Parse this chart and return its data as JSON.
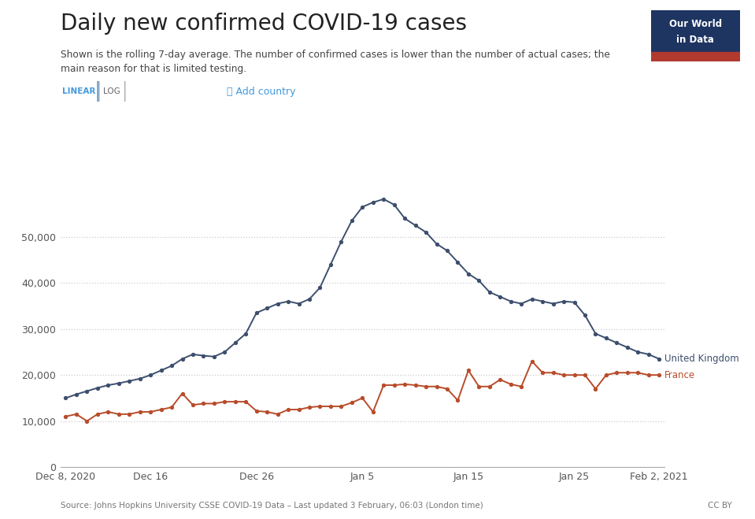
{
  "title": "Daily new confirmed COVID-19 cases",
  "subtitle": "Shown is the rolling 7-day average. The number of confirmed cases is lower than the number of actual cases; the\nmain reason for that is limited testing.",
  "source": "Source: Johns Hopkins University CSSE COVID-19 Data – Last updated 3 February, 06:03 (London time)",
  "cc_by": "CC BY",
  "uk_color": "#3d4f6e",
  "france_color": "#b84c2b",
  "background_color": "#ffffff",
  "grid_color": "#cccccc",
  "ylim": [
    0,
    62000
  ],
  "yticks": [
    0,
    10000,
    20000,
    30000,
    40000,
    50000
  ],
  "logo_bg": "#1e3461",
  "logo_red": "#b13a2e",
  "uk_values": [
    15000,
    15800,
    16500,
    17200,
    17800,
    18200,
    18700,
    19200,
    20000,
    21000,
    22000,
    23500,
    24500,
    24200,
    24000,
    25000,
    27000,
    29000,
    33500,
    34500,
    35500,
    36000,
    35500,
    36500,
    39000,
    44000,
    49000,
    53500,
    56500,
    57500,
    58200,
    57000,
    54000,
    52500,
    51000,
    48500,
    47000,
    44500,
    42000,
    40500,
    38000,
    37000,
    36000,
    35500,
    36500,
    36000,
    35500,
    36000,
    35800,
    33000,
    29000,
    28000,
    27000,
    26000,
    25000,
    24500,
    23500
  ],
  "france_values": [
    11000,
    11500,
    10000,
    11500,
    12000,
    11500,
    11500,
    12000,
    12000,
    12500,
    13000,
    16000,
    13500,
    13800,
    13800,
    14200,
    14200,
    14200,
    12200,
    12000,
    11500,
    12500,
    12500,
    13000,
    13200,
    13200,
    13200,
    14000,
    15000,
    12000,
    17800,
    17800,
    18000,
    17800,
    17500,
    17500,
    17000,
    14500,
    21000,
    17500,
    17500,
    19000,
    18000,
    17500,
    23000,
    20500,
    20500,
    20000,
    20000,
    20000,
    17000,
    20000,
    20500,
    20500,
    20500,
    20000,
    20000
  ],
  "xtick_labels": [
    "Dec 8, 2020",
    "Dec 16",
    "Dec 26",
    "Jan 5",
    "Jan 15",
    "Jan 25",
    "Feb 2, 2021"
  ],
  "xtick_positions": [
    0,
    8,
    18,
    28,
    38,
    48,
    56
  ]
}
